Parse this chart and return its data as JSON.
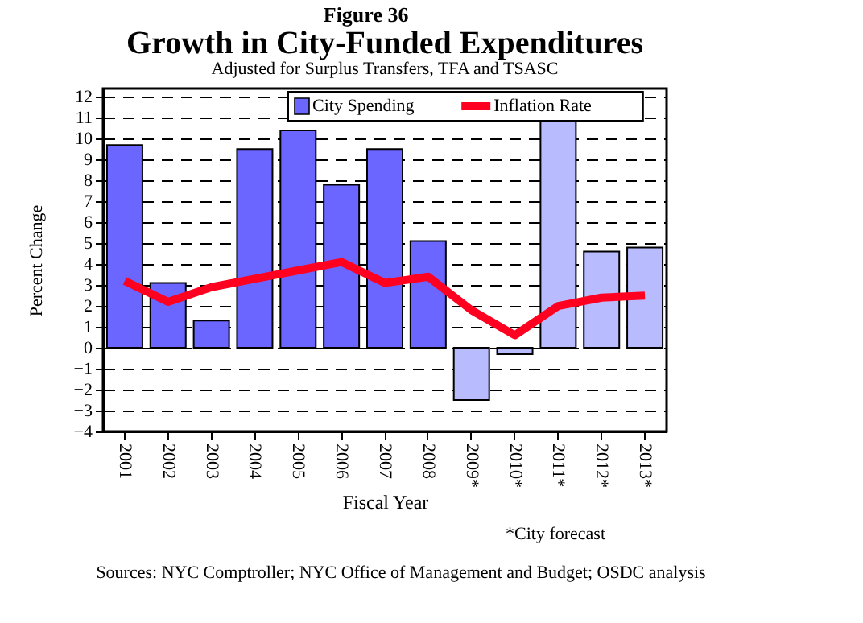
{
  "chart_data": {
    "type": "bar",
    "title": "Growth in City-Funded Expenditures",
    "subtitle": "Adjusted for Surplus Transfers, TFA and TSASC",
    "xlabel": "Fiscal Year",
    "ylabel": "Percent Change",
    "annotations": [
      "Figure 36",
      "*City forecast",
      "Sources: NYC Comptroller; NYC Office of Management and Budget; OSDC analysis"
    ],
    "categories": [
      "2001",
      "2002",
      "2003",
      "2004",
      "2005",
      "2006",
      "2007",
      "2008",
      "2009*",
      "2010*",
      "2011*",
      "2012*",
      "2013*"
    ],
    "series": [
      {
        "name": "City Spending",
        "color": "#6b66ff",
        "colors": [
          "#6b66ff",
          "#6b66ff",
          "#6b66ff",
          "#6b66ff",
          "#6b66ff",
          "#6b66ff",
          "#6b66ff",
          "#6b66ff",
          "#b8bcff",
          "#b8bcff",
          "#b8bcff",
          "#b8bcff",
          "#b8bcff"
        ],
        "values": [
          9.7,
          3.1,
          1.3,
          9.5,
          10.4,
          7.8,
          9.5,
          5.1,
          -2.5,
          -0.3,
          11.0,
          4.6,
          4.8
        ]
      },
      {
        "name": "Inflation Rate",
        "type": "line",
        "color": "#ff0020",
        "values": [
          3.2,
          2.2,
          2.9,
          3.3,
          3.7,
          4.1,
          3.1,
          3.4,
          1.8,
          0.6,
          2.0,
          2.4,
          2.5
        ]
      }
    ],
    "ylim": [
      -4,
      12.4
    ],
    "yticks": [
      -4,
      -3,
      -2,
      -1,
      0,
      1,
      2,
      3,
      4,
      5,
      6,
      7,
      8,
      9,
      10,
      11,
      12
    ],
    "grid": "y",
    "legend": "top",
    "line_style": "solid"
  }
}
